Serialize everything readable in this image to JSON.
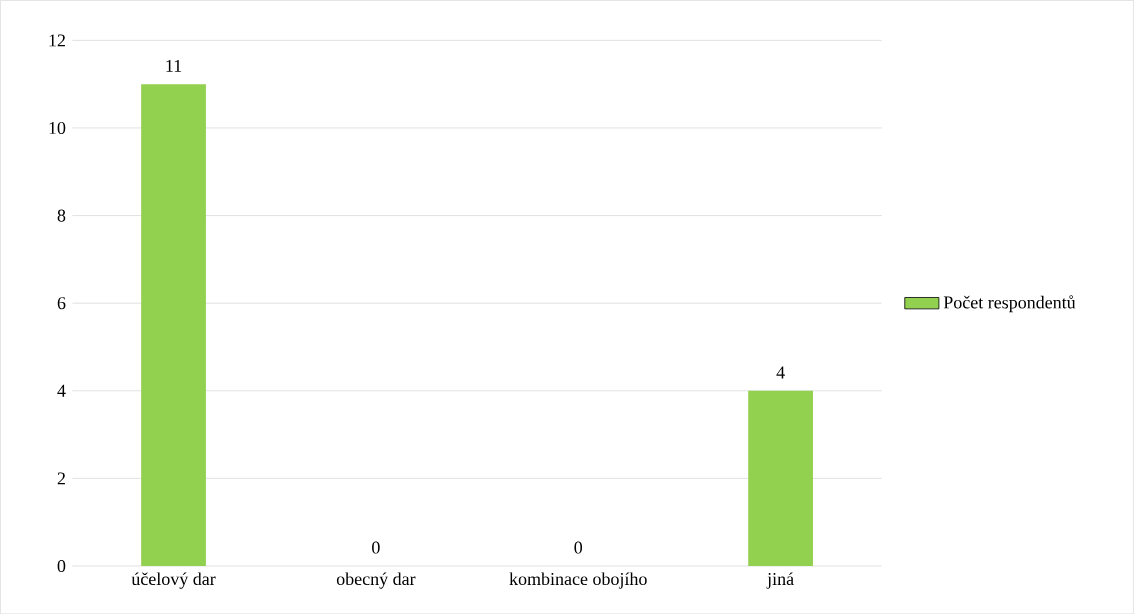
{
  "chart_data": {
    "type": "bar",
    "categories": [
      "účelový dar",
      "obecný dar",
      "kombinace obojího",
      "jiná"
    ],
    "series": [
      {
        "name": "Počet respondentů",
        "color": "#92d050",
        "values": [
          11,
          0,
          0,
          4
        ]
      }
    ],
    "ylim": [
      0,
      12
    ],
    "yticks": [
      0,
      2,
      4,
      6,
      8,
      10,
      12
    ],
    "grid": "y",
    "legend": "right",
    "data_labels": true
  }
}
